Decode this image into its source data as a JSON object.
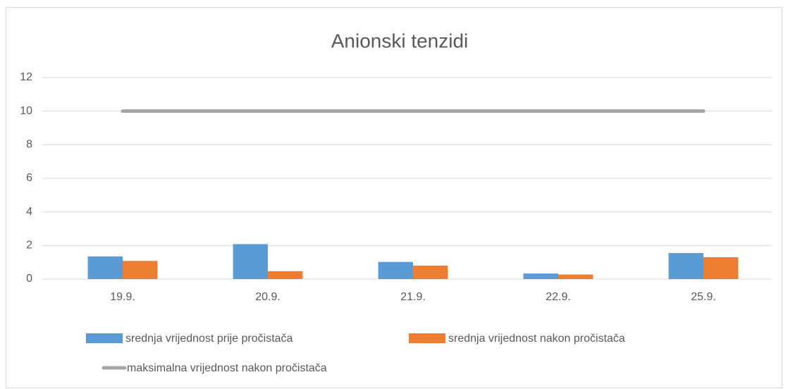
{
  "chart_data": {
    "type": "bar",
    "title": "Anionski tenzidi",
    "categories": [
      "19.9.",
      "20.9.",
      "21.9.",
      "22.9.",
      "25.9."
    ],
    "series": [
      {
        "name": "srednja vrijednost prije pročistača",
        "color": "#5b9bd5",
        "values": [
          1.35,
          2.08,
          1.02,
          0.33,
          1.55
        ]
      },
      {
        "name": "srednja vrijednost nakon pročistača",
        "color": "#ed7d31",
        "values": [
          1.08,
          0.47,
          0.8,
          0.27,
          1.3
        ]
      },
      {
        "name": "maksimalna vrijednost nakon pročistača",
        "color": "#a5a5a5",
        "type": "line",
        "values": [
          10,
          10,
          10,
          10,
          10
        ]
      }
    ],
    "ylim": [
      0,
      12
    ],
    "yticks": [
      0,
      2,
      4,
      6,
      8,
      10,
      12
    ],
    "grid": true,
    "legend": "bottom"
  }
}
